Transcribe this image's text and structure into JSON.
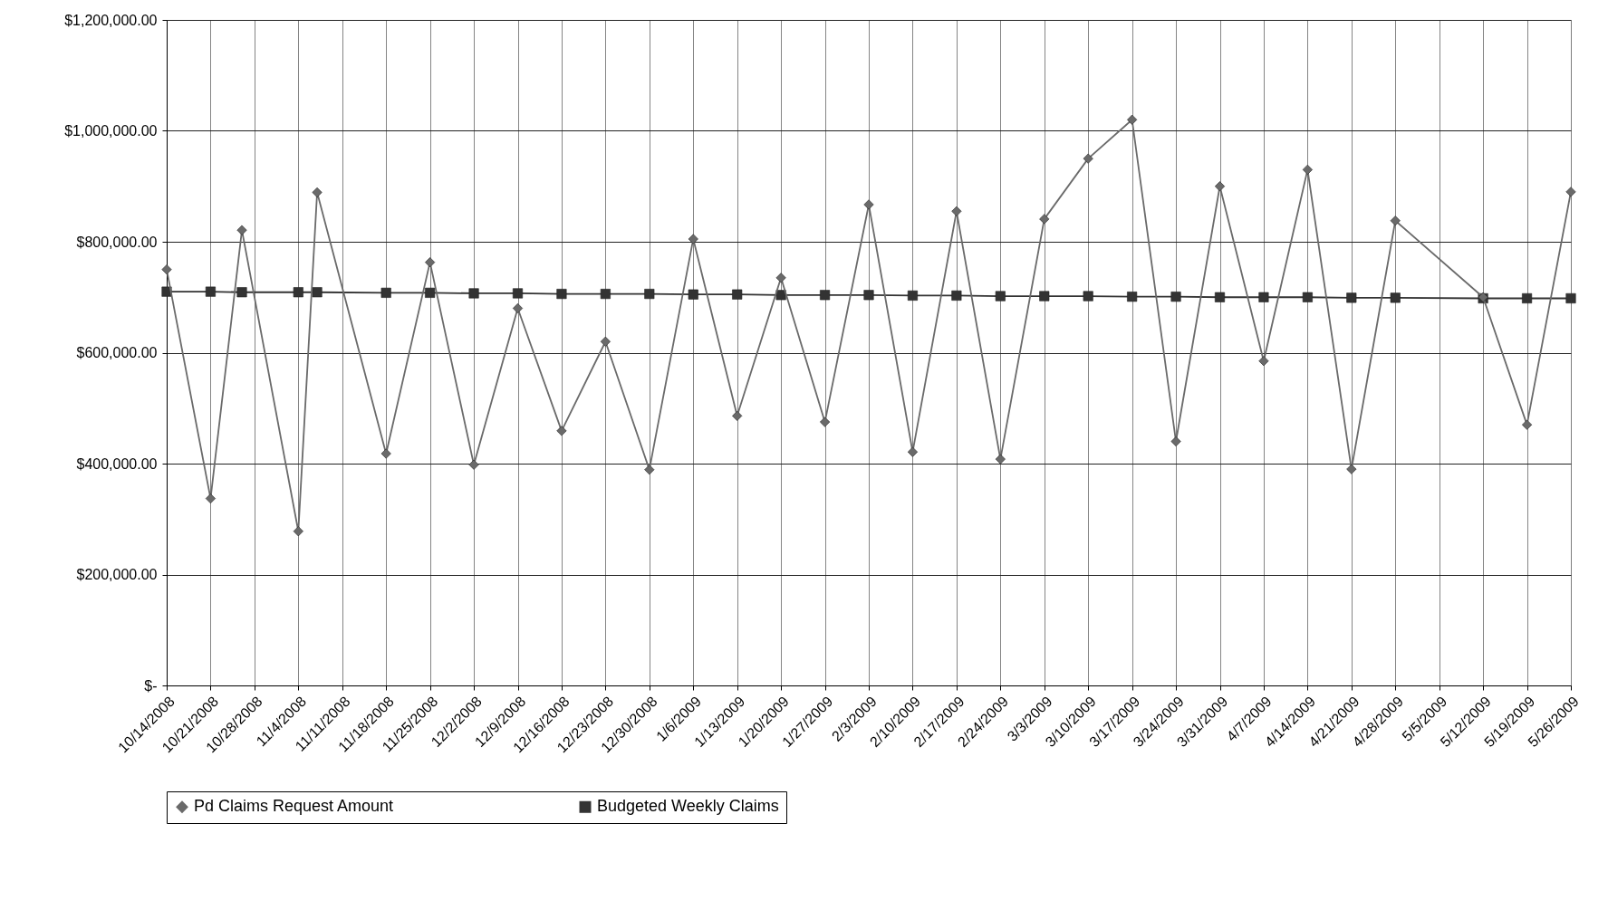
{
  "chart_data": {
    "type": "line",
    "x": [
      "2008-10-14",
      "2008-10-21",
      "2008-10-26",
      "2008-11-04",
      "2008-11-07",
      "2008-11-18",
      "2008-11-25",
      "2008-12-02",
      "2008-12-09",
      "2008-12-16",
      "2008-12-23",
      "2008-12-30",
      "2009-01-06",
      "2009-01-13",
      "2009-01-20",
      "2009-01-27",
      "2009-02-03",
      "2009-02-10",
      "2009-02-17",
      "2009-02-24",
      "2009-03-03",
      "2009-03-10",
      "2009-03-17",
      "2009-03-24",
      "2009-03-31",
      "2009-04-07",
      "2009-04-14",
      "2009-04-21",
      "2009-04-28",
      "2009-05-12",
      "2009-05-19",
      "2009-05-26"
    ],
    "series": [
      {
        "name": "Pd Claims Request Amount",
        "color": "#6a6a6a",
        "marker": "diamond",
        "values": [
          750000,
          337000,
          821000,
          278000,
          889000,
          418000,
          763000,
          398000,
          680000,
          459000,
          620000,
          389000,
          805000,
          486000,
          735000,
          475000,
          867000,
          421000,
          855000,
          408000,
          841000,
          950000,
          1020000,
          440000,
          900000,
          585000,
          930000,
          390000,
          838000,
          700000,
          470000,
          890000
        ]
      },
      {
        "name": "Budgeted Weekly Claims",
        "color": "#333333",
        "marker": "square",
        "values": [
          710000,
          710000,
          709000,
          709000,
          709000,
          708000,
          708000,
          707000,
          707000,
          706000,
          706000,
          706000,
          705000,
          705000,
          704000,
          704000,
          704000,
          703000,
          703000,
          702000,
          702000,
          702000,
          701000,
          701000,
          700000,
          700000,
          700000,
          699000,
          699000,
          698000,
          698000,
          698000
        ]
      }
    ],
    "xlim": [
      "2008-10-14",
      "2009-05-26"
    ],
    "xticks": [
      {
        "value": "2008-10-14",
        "label": "10/14/2008"
      },
      {
        "value": "2008-10-21",
        "label": "10/21/2008"
      },
      {
        "value": "2008-10-28",
        "label": "10/28/2008"
      },
      {
        "value": "2008-11-04",
        "label": "11/4/2008"
      },
      {
        "value": "2008-11-11",
        "label": "11/11/2008"
      },
      {
        "value": "2008-11-18",
        "label": "11/18/2008"
      },
      {
        "value": "2008-11-25",
        "label": "11/25/2008"
      },
      {
        "value": "2008-12-02",
        "label": "12/2/2008"
      },
      {
        "value": "2008-12-09",
        "label": "12/9/2008"
      },
      {
        "value": "2008-12-16",
        "label": "12/16/2008"
      },
      {
        "value": "2008-12-23",
        "label": "12/23/2008"
      },
      {
        "value": "2008-12-30",
        "label": "12/30/2008"
      },
      {
        "value": "2009-01-06",
        "label": "1/6/2009"
      },
      {
        "value": "2009-01-13",
        "label": "1/13/2009"
      },
      {
        "value": "2009-01-20",
        "label": "1/20/2009"
      },
      {
        "value": "2009-01-27",
        "label": "1/27/2009"
      },
      {
        "value": "2009-02-03",
        "label": "2/3/2009"
      },
      {
        "value": "2009-02-10",
        "label": "2/10/2009"
      },
      {
        "value": "2009-02-17",
        "label": "2/17/2009"
      },
      {
        "value": "2009-02-24",
        "label": "2/24/2009"
      },
      {
        "value": "2009-03-03",
        "label": "3/3/2009"
      },
      {
        "value": "2009-03-10",
        "label": "3/10/2009"
      },
      {
        "value": "2009-03-17",
        "label": "3/17/2009"
      },
      {
        "value": "2009-03-24",
        "label": "3/24/2009"
      },
      {
        "value": "2009-03-31",
        "label": "3/31/2009"
      },
      {
        "value": "2009-04-07",
        "label": "4/7/2009"
      },
      {
        "value": "2009-04-14",
        "label": "4/14/2009"
      },
      {
        "value": "2009-04-21",
        "label": "4/21/2009"
      },
      {
        "value": "2009-04-28",
        "label": "4/28/2009"
      },
      {
        "value": "2009-05-05",
        "label": "5/5/2009"
      },
      {
        "value": "2009-05-12",
        "label": "5/12/2009"
      },
      {
        "value": "2009-05-19",
        "label": "5/19/2009"
      },
      {
        "value": "2009-05-26",
        "label": "5/26/2009"
      }
    ],
    "ylim": [
      0,
      1200000
    ],
    "yticks": [
      {
        "value": 0,
        "label": "$-"
      },
      {
        "value": 200000,
        "label": "$200,000.00"
      },
      {
        "value": 400000,
        "label": "$400,000.00"
      },
      {
        "value": 600000,
        "label": "$600,000.00"
      },
      {
        "value": 800000,
        "label": "$800,000.00"
      },
      {
        "value": 1000000,
        "label": "$1,000,000.00"
      },
      {
        "value": 1200000,
        "label": "$1,200,000.00"
      }
    ],
    "grid": true,
    "legend": "bottom"
  }
}
